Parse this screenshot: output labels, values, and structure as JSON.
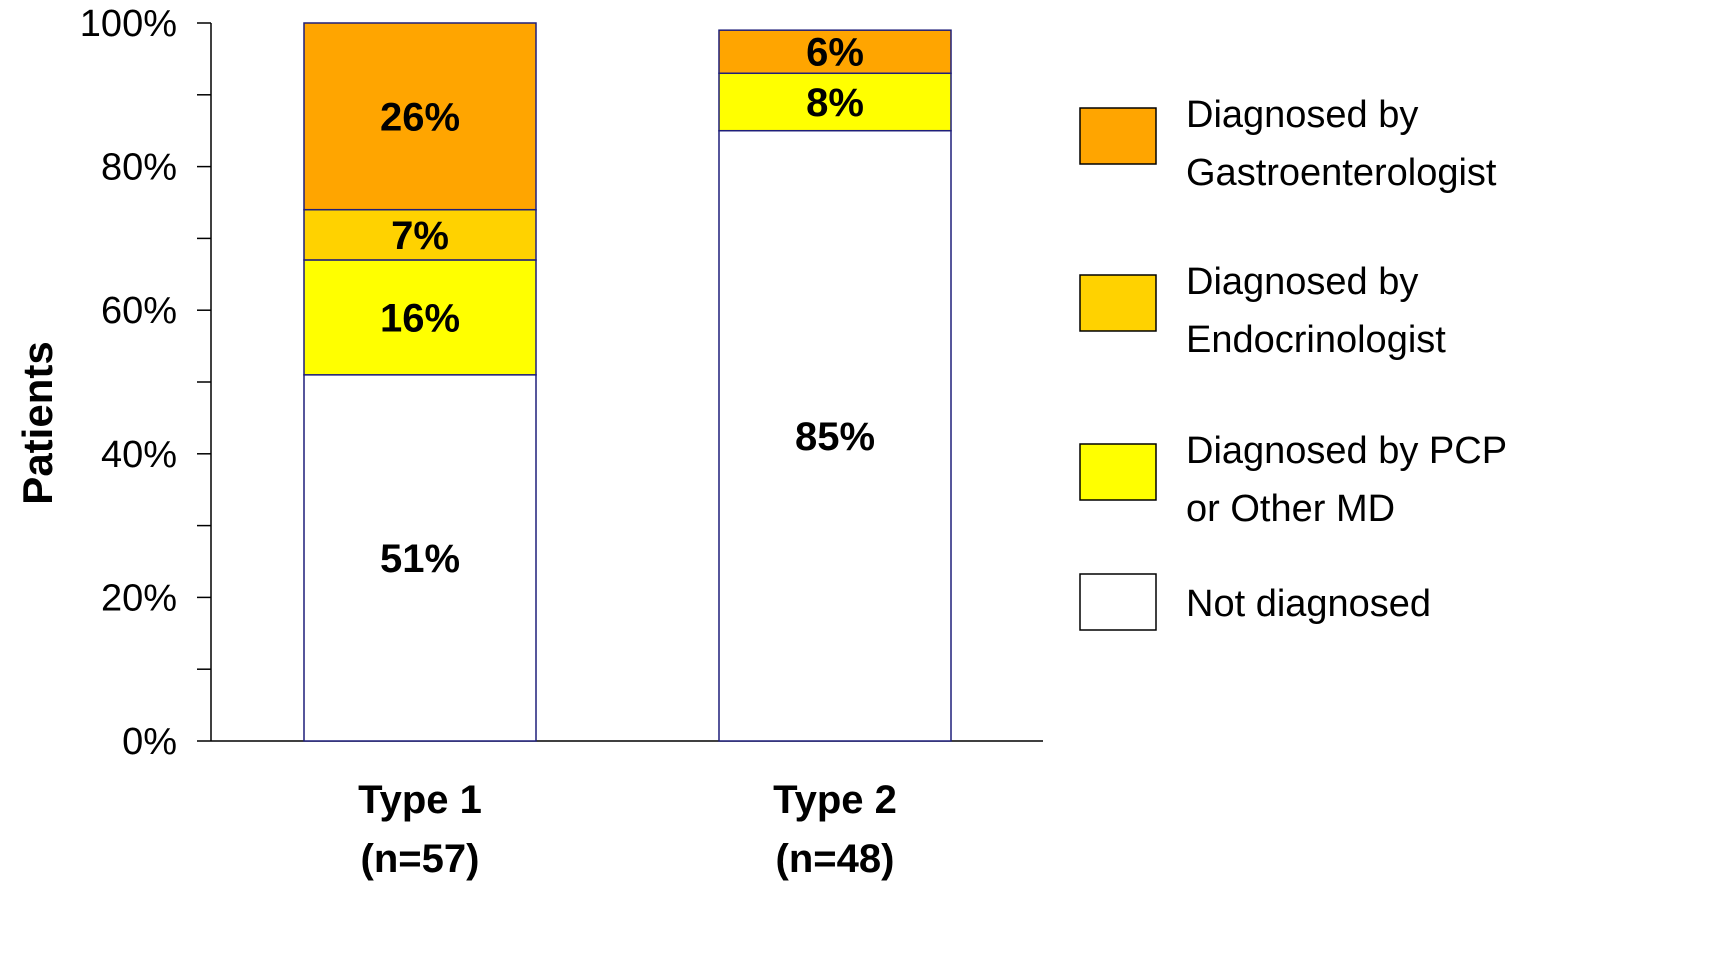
{
  "chart_data": {
    "type": "bar",
    "stacked": true,
    "orientation": "vertical",
    "ylabel": "Patients",
    "xlabel": "",
    "ylim": [
      0,
      100
    ],
    "y_ticks": [
      "0%",
      "20%",
      "40%",
      "60%",
      "80%",
      "100%"
    ],
    "y_tick_values": [
      0,
      20,
      40,
      60,
      80,
      100
    ],
    "categories": [
      {
        "name": "Type 1",
        "sub": "(n=57)"
      },
      {
        "name": "Type 2",
        "sub": "(n=48)"
      }
    ],
    "series": [
      {
        "name": "Not diagnosed",
        "color": "#ffffff",
        "values": [
          51,
          85
        ],
        "labels": [
          "51%",
          "85%"
        ]
      },
      {
        "name": "Diagnosed by PCP or Other MD",
        "legend_lines": [
          "Diagnosed by PCP",
          "or Other MD"
        ],
        "color": "#ffff00",
        "values": [
          16,
          8
        ],
        "labels": [
          "16%",
          "8%"
        ]
      },
      {
        "name": "Diagnosed by Endocrinologist",
        "legend_lines": [
          "Diagnosed by",
          "Endocrinologist"
        ],
        "color": "#ffd200",
        "values": [
          7,
          0
        ],
        "labels": [
          "7%",
          ""
        ]
      },
      {
        "name": "Diagnosed by Gastroenterologist",
        "legend_lines": [
          "Diagnosed by",
          "Gastroenterologist"
        ],
        "color": "#ffa500",
        "values": [
          26,
          6
        ],
        "labels": [
          "26%",
          "6%"
        ]
      }
    ],
    "legend_order": [
      3,
      2,
      1,
      0
    ],
    "legend_placement": "right",
    "grid": false,
    "bar_outline_color": "#1f1f7a"
  }
}
